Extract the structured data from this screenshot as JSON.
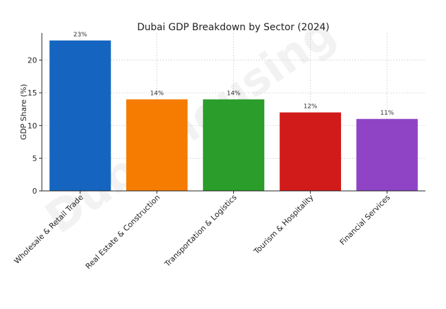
{
  "chart_data": {
    "type": "bar",
    "title": "Dubai GDP Breakdown by Sector (2024)",
    "xlabel": "",
    "ylabel": "GDP Share (%)",
    "ylim": [
      0,
      24.15
    ],
    "yticks": [
      0,
      5,
      10,
      15,
      20
    ],
    "grid": true,
    "categories": [
      "Wholesale & Retail Trade",
      "Real Estate & Construction",
      "Transportation & Logistics",
      "Tourism & Hospitality",
      "Financial Services"
    ],
    "values": [
      23,
      14,
      14,
      12,
      11
    ],
    "data_labels": [
      "23%",
      "14%",
      "14%",
      "12%",
      "11%"
    ],
    "colors": [
      "#1565c0",
      "#f57c00",
      "#2a9d2a",
      "#d11a1a",
      "#8e44c4"
    ]
  },
  "watermark": "Dubaihousing"
}
